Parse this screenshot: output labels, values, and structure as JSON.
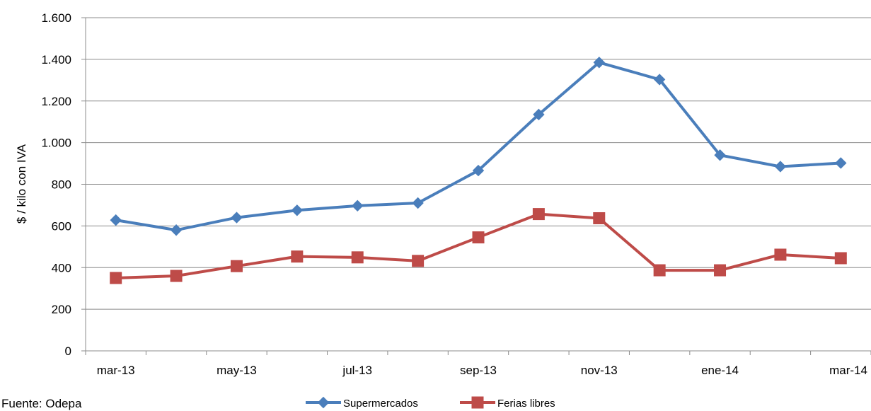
{
  "chart_data": {
    "type": "line",
    "title": "",
    "xlabel": "",
    "ylabel": "$ / kilo con IVA",
    "ylim": [
      0,
      1600
    ],
    "y_ticks": [
      0,
      200,
      400,
      600,
      800,
      1000,
      1200,
      1400,
      1600
    ],
    "y_tick_labels": [
      "0",
      "200",
      "400",
      "600",
      "800",
      "1.000",
      "1.200",
      "1.400",
      "1.600"
    ],
    "categories": [
      "mar-13",
      "abr-13",
      "may-13",
      "jun-13",
      "jul-13",
      "ago-13",
      "sep-13",
      "oct-13",
      "nov-13",
      "dic-13",
      "ene-14",
      "feb-14",
      "mar-14"
    ],
    "x_tick_labels": [
      "mar-13",
      "",
      "may-13",
      "",
      "jul-13",
      "",
      "sep-13",
      "",
      "nov-13",
      "",
      "ene-14",
      "",
      "mar-14"
    ],
    "grid": true,
    "legend_position": "bottom",
    "series": [
      {
        "name": "Supermercados",
        "color": "#4A7EBB",
        "marker": "diamond",
        "values": [
          628,
          580,
          640,
          675,
          697,
          710,
          866,
          1135,
          1385,
          1303,
          940,
          885,
          902
        ]
      },
      {
        "name": "Ferias libres",
        "color": "#BE4B48",
        "marker": "square",
        "values": [
          350,
          360,
          407,
          453,
          449,
          432,
          545,
          657,
          637,
          387,
          387,
          462,
          445
        ]
      }
    ]
  },
  "footer": {
    "source": "Fuente: Odepa"
  }
}
